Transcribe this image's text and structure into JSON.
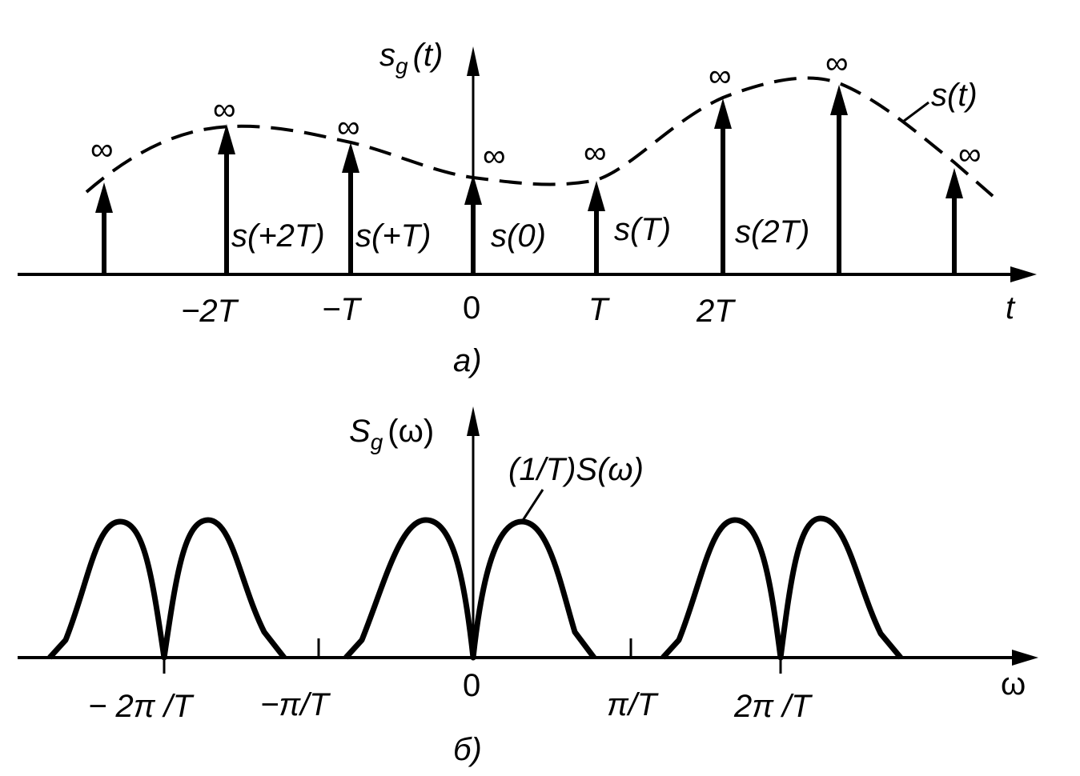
{
  "top": {
    "y_axis_label": "s",
    "y_axis_sub": "g",
    "y_axis_arg": "(t)",
    "x_axis_label": "t",
    "envelope_label": "s(t)",
    "infinity": "∞",
    "ticks": [
      "−2T",
      "−T",
      "0",
      "T",
      "2T"
    ],
    "sample_labels": [
      "s(+2T)",
      "s(+T)",
      "s(0)",
      "s(T)",
      "s(2T)"
    ],
    "caption": "a)"
  },
  "bottom": {
    "y_axis_label": "S",
    "y_axis_sub": "g",
    "y_axis_arg": "(ω)",
    "x_axis_label": "ω",
    "curve_label": "(1/T)S(ω)",
    "ticks": [
      "− 2π /T",
      "−π/T",
      "0",
      "π/T",
      "2π /T"
    ],
    "caption": "б)"
  }
}
